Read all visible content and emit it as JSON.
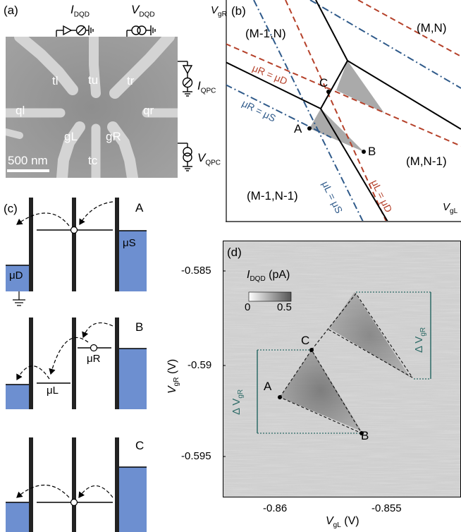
{
  "panels": {
    "a": {
      "label": "(a)",
      "i_dqd": "I",
      "i_dqd_sub": "DQD",
      "v_dqd": "V",
      "v_dqd_sub": "DQD",
      "i_qpc": "I",
      "i_qpc_sub": "QPC",
      "v_qpc": "V",
      "v_qpc_sub": "QPC",
      "gates": [
        "tl",
        "tu",
        "tr",
        "ql",
        "qr",
        "gL",
        "gR",
        "tc"
      ],
      "scale_bar": "500 nm"
    },
    "b": {
      "label": "(b)",
      "axis_y": "V",
      "axis_y_sub": "gR",
      "axis_x": "V",
      "axis_x_sub": "gL",
      "regions": [
        "(M-1,N)",
        "(M,N)",
        "(M,N-1)",
        "(M-1,N-1)"
      ],
      "lines": [
        "μR = μD",
        "μR = μS",
        "μL = μS",
        "μL = μD"
      ],
      "points": [
        "A",
        "B",
        "C"
      ],
      "colors": {
        "red": "#b5412a",
        "blue": "#2f5a8a",
        "black": "#000000",
        "triangle": "#aaaaaa"
      }
    },
    "c": {
      "label": "(c)",
      "states": [
        "A",
        "B",
        "C"
      ],
      "mu_s": "μS",
      "mu_d": "μD",
      "mu_r": "μR",
      "mu_l": "μL",
      "fill_color": "#6d8fd0"
    },
    "d": {
      "label": "(d)",
      "ylabel": "V",
      "ylabel_sub": "gR",
      "ylabel_unit": "(V)",
      "xlabel": "V",
      "xlabel_sub": "gL",
      "xlabel_unit": "(V)",
      "yticks": [
        "-0.585",
        "-0.59",
        "-0.595"
      ],
      "xticks": [
        "-0.86",
        "-0.855"
      ],
      "colorbar_title": "I",
      "colorbar_title_sub": "DQD",
      "colorbar_unit": "(pA)",
      "colorbar_ticks": [
        "0",
        "0.5"
      ],
      "points": [
        "A",
        "B",
        "C"
      ],
      "delta_label": "Δ V",
      "delta_sub": "gR"
    }
  },
  "chart_data": {
    "type": "heatmap",
    "xlabel": "VgL (V)",
    "ylabel": "VgR (V)",
    "xlim": [
      -0.8635,
      -0.8515
    ],
    "ylim": [
      -0.5975,
      -0.5825
    ],
    "xticks": [
      -0.86,
      -0.855
    ],
    "yticks": [
      -0.585,
      -0.59,
      -0.595
    ],
    "colorbar": {
      "label": "IDQD (pA)",
      "range": [
        0,
        0.5
      ]
    },
    "points": [
      {
        "name": "A",
        "x": -0.8612,
        "y": -0.5915
      },
      {
        "name": "B",
        "x": -0.8567,
        "y": -0.5936
      },
      {
        "name": "C",
        "x": -0.8588,
        "y": -0.5892
      }
    ]
  }
}
